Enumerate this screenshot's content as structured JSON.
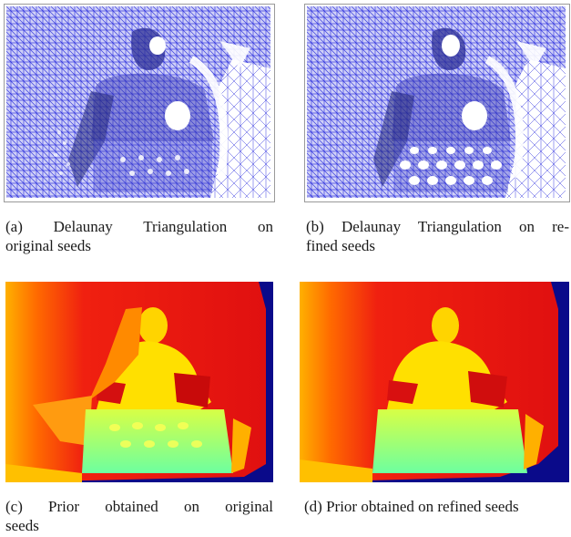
{
  "figure": {
    "panels": [
      {
        "id": "a",
        "kind": "triangulation",
        "caption_line1": "(a) Delaunay Triangulation on",
        "caption_line2": "original seeds",
        "mesh_color": "#3b3ee0"
      },
      {
        "id": "b",
        "kind": "triangulation",
        "caption_line1": "(b) Delaunay Triangulation on re-",
        "caption_line2": "fined seeds",
        "mesh_color": "#3b3ee0"
      },
      {
        "id": "c",
        "kind": "depth-prior",
        "caption_line1": "(c) Prior obtained on original",
        "caption_line2": "seeds",
        "colormap": [
          "#e01010",
          "#ff6a00",
          "#ffd000",
          "#ffff30",
          "#7dff7d",
          "#0a0a8a"
        ]
      },
      {
        "id": "d",
        "kind": "depth-prior",
        "caption_line1": "(d) Prior obtained on refined seeds",
        "caption_line2": "",
        "colormap": [
          "#e01010",
          "#ff6a00",
          "#ffd000",
          "#ffff30",
          "#7dff7d",
          "#0a0a8a"
        ]
      }
    ]
  }
}
